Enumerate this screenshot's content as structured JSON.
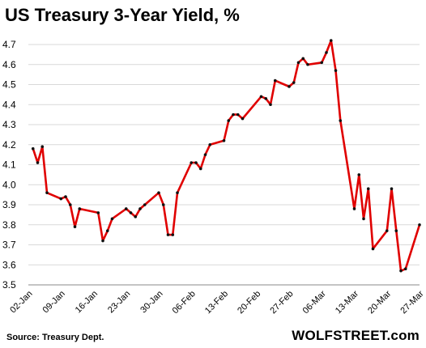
{
  "title": "US Treasury 3-Year Yield, %",
  "source": "Source: Treasury Dept.",
  "brand": "WOLFSTREET.com",
  "colors": {
    "line": "#e00000",
    "point": "#111111",
    "grid": "#d9d9d9"
  },
  "chart_data": {
    "type": "line",
    "title": "US Treasury 3-Year Yield, %",
    "xlabel": "",
    "ylabel": "",
    "ylim": [
      3.5,
      4.7
    ],
    "yticks": [
      "3.5",
      "3.6",
      "3.7",
      "3.8",
      "3.9",
      "4.0",
      "4.1",
      "4.2",
      "4.3",
      "4.4",
      "4.5",
      "4.6",
      "4.7"
    ],
    "x_range": [
      "2023-01-02",
      "2023-03-27"
    ],
    "xticks": [
      "02-Jan",
      "09-Jan",
      "16-Jan",
      "23-Jan",
      "30-Jan",
      "06-Feb",
      "13-Feb",
      "20-Feb",
      "27-Feb",
      "06-Mar",
      "13-Mar",
      "20-Mar",
      "27-Mar"
    ],
    "grid": true,
    "series": [
      {
        "values": [
          [
            "2023-01-03",
            4.18
          ],
          [
            "2023-01-04",
            4.11
          ],
          [
            "2023-01-05",
            4.19
          ],
          [
            "2023-01-06",
            3.96
          ],
          [
            "2023-01-09",
            3.93
          ],
          [
            "2023-01-10",
            3.94
          ],
          [
            "2023-01-11",
            3.9
          ],
          [
            "2023-01-12",
            3.79
          ],
          [
            "2023-01-13",
            3.88
          ],
          [
            "2023-01-17",
            3.86
          ],
          [
            "2023-01-18",
            3.72
          ],
          [
            "2023-01-19",
            3.77
          ],
          [
            "2023-01-20",
            3.83
          ],
          [
            "2023-01-23",
            3.88
          ],
          [
            "2023-01-24",
            3.86
          ],
          [
            "2023-01-25",
            3.84
          ],
          [
            "2023-01-26",
            3.88
          ],
          [
            "2023-01-27",
            3.9
          ],
          [
            "2023-01-30",
            3.96
          ],
          [
            "2023-01-31",
            3.9
          ],
          [
            "2023-02-01",
            3.75
          ],
          [
            "2023-02-02",
            3.75
          ],
          [
            "2023-02-03",
            3.96
          ],
          [
            "2023-02-06",
            4.11
          ],
          [
            "2023-02-07",
            4.11
          ],
          [
            "2023-02-08",
            4.08
          ],
          [
            "2023-02-09",
            4.15
          ],
          [
            "2023-02-10",
            4.2
          ],
          [
            "2023-02-13",
            4.22
          ],
          [
            "2023-02-14",
            4.32
          ],
          [
            "2023-02-15",
            4.35
          ],
          [
            "2023-02-16",
            4.35
          ],
          [
            "2023-02-17",
            4.33
          ],
          [
            "2023-02-21",
            4.44
          ],
          [
            "2023-02-22",
            4.43
          ],
          [
            "2023-02-23",
            4.4
          ],
          [
            "2023-02-24",
            4.52
          ],
          [
            "2023-02-27",
            4.49
          ],
          [
            "2023-02-28",
            4.51
          ],
          [
            "2023-03-01",
            4.61
          ],
          [
            "2023-03-02",
            4.63
          ],
          [
            "2023-03-03",
            4.6
          ],
          [
            "2023-03-06",
            4.61
          ],
          [
            "2023-03-07",
            4.66
          ],
          [
            "2023-03-08",
            4.72
          ],
          [
            "2023-03-09",
            4.57
          ],
          [
            "2023-03-10",
            4.32
          ],
          [
            "2023-03-13",
            3.88
          ],
          [
            "2023-03-14",
            4.05
          ],
          [
            "2023-03-15",
            3.83
          ],
          [
            "2023-03-16",
            3.98
          ],
          [
            "2023-03-17",
            3.68
          ],
          [
            "2023-03-20",
            3.77
          ],
          [
            "2023-03-21",
            3.98
          ],
          [
            "2023-03-22",
            3.77
          ],
          [
            "2023-03-23",
            3.57
          ],
          [
            "2023-03-24",
            3.58
          ],
          [
            "2023-03-27",
            3.8
          ]
        ]
      }
    ]
  }
}
